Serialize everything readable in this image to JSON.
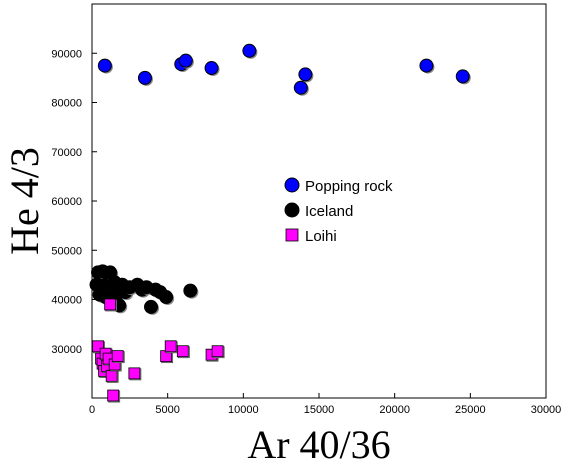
{
  "chart_data": {
    "type": "scatter",
    "xlabel": "Ar 40/36",
    "ylabel": "He 4/3",
    "xlim": [
      0,
      30000
    ],
    "ylim": [
      20000,
      100000
    ],
    "xticks": [
      0,
      5000,
      10000,
      15000,
      20000,
      25000,
      30000
    ],
    "yticks": [
      30000,
      40000,
      50000,
      60000,
      70000,
      80000,
      90000
    ],
    "xtick_labels": [
      "0",
      "5000",
      "10000",
      "15000",
      "20000",
      "25000",
      "30000"
    ],
    "ytick_labels": [
      "30000",
      "40000",
      "50000",
      "60000",
      "70000",
      "80000",
      "90000"
    ],
    "legend_position": "center-right",
    "series": [
      {
        "name": "Popping rock",
        "marker": "circle",
        "color": "#0000ff",
        "points": [
          [
            850,
            87500
          ],
          [
            3500,
            85000
          ],
          [
            5900,
            87800
          ],
          [
            6200,
            88500
          ],
          [
            7900,
            87000
          ],
          [
            10400,
            90500
          ],
          [
            13800,
            83000
          ],
          [
            14100,
            85700
          ],
          [
            22100,
            87500
          ],
          [
            24500,
            85300
          ]
        ]
      },
      {
        "name": "Iceland",
        "marker": "circle",
        "color": "#000000",
        "points": [
          [
            300,
            43000
          ],
          [
            400,
            45500
          ],
          [
            500,
            41000
          ],
          [
            600,
            44500
          ],
          [
            700,
            45700
          ],
          [
            800,
            42500
          ],
          [
            900,
            40500
          ],
          [
            1000,
            41500
          ],
          [
            1100,
            43500
          ],
          [
            1200,
            45500
          ],
          [
            1300,
            40000
          ],
          [
            1400,
            42000
          ],
          [
            1500,
            43500
          ],
          [
            1600,
            41000
          ],
          [
            1800,
            38800
          ],
          [
            2000,
            43000
          ],
          [
            2200,
            41500
          ],
          [
            2500,
            42500
          ],
          [
            3000,
            43000
          ],
          [
            3300,
            42000
          ],
          [
            3600,
            42500
          ],
          [
            3900,
            38500
          ],
          [
            4200,
            42000
          ],
          [
            4500,
            41500
          ],
          [
            4900,
            40500
          ],
          [
            6500,
            41800
          ]
        ]
      },
      {
        "name": "Loihi",
        "marker": "square",
        "color": "#ff00ff",
        "points": [
          [
            400,
            30500
          ],
          [
            600,
            28000
          ],
          [
            700,
            27000
          ],
          [
            800,
            25500
          ],
          [
            900,
            29000
          ],
          [
            1000,
            26500
          ],
          [
            1100,
            28000
          ],
          [
            1200,
            39000
          ],
          [
            1300,
            24500
          ],
          [
            1400,
            20500
          ],
          [
            1500,
            26800
          ],
          [
            1700,
            28500
          ],
          [
            2800,
            25000
          ],
          [
            4900,
            28500
          ],
          [
            5200,
            30500
          ],
          [
            6000,
            29500
          ],
          [
            7900,
            28800
          ],
          [
            8300,
            29500
          ]
        ]
      }
    ]
  }
}
